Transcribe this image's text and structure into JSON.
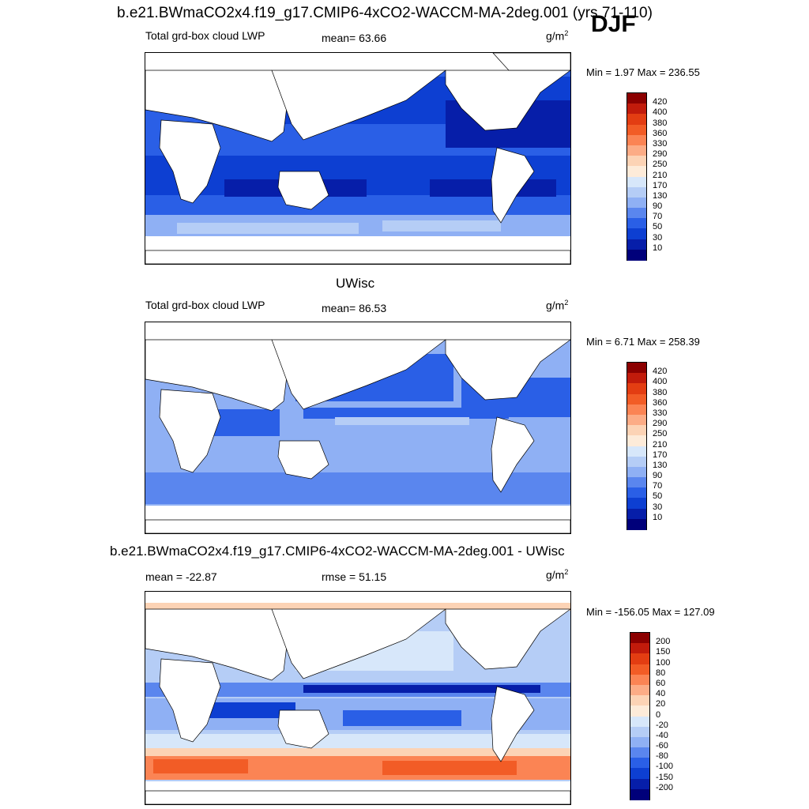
{
  "header": {
    "case_title": "b.e21.BWmaCO2x4.f19_g17.CMIP6-4xCO2-WACCM-MA-2deg.001 (yrs 71-110)",
    "season": "DJF"
  },
  "panels": [
    {
      "id": "test",
      "variable_label": "Total grd-box cloud LWP",
      "stat_label": "mean=  63.66",
      "units": "g/m",
      "units_exp": "2",
      "minmax": "Min =   1.97 Max = 236.55",
      "colorbar_levels": [
        "420",
        "400",
        "380",
        "360",
        "330",
        "290",
        "250",
        "210",
        "170",
        "130",
        "90",
        "70",
        "50",
        "30",
        "10"
      ]
    },
    {
      "id": "control",
      "title": "UWisc",
      "variable_label": "Total grd-box cloud LWP",
      "stat_label": "mean=  86.53",
      "units": "g/m",
      "units_exp": "2",
      "minmax": "Min =   6.71 Max = 258.39",
      "colorbar_levels": [
        "420",
        "400",
        "380",
        "360",
        "330",
        "290",
        "250",
        "210",
        "170",
        "130",
        "90",
        "70",
        "50",
        "30",
        "10"
      ]
    },
    {
      "id": "diff",
      "title": "b.e21.BWmaCO2x4.f19_g17.CMIP6-4xCO2-WACCM-MA-2deg.001 - UWisc",
      "variable_label": "mean = -22.87",
      "stat_label": "rmse =  51.15",
      "units": "g/m",
      "units_exp": "2",
      "minmax": "Min = -156.05 Max = 127.09",
      "colorbar_levels": [
        "200",
        "150",
        "100",
        "80",
        "60",
        "40",
        "20",
        "0",
        "-20",
        "-40",
        "-60",
        "-80",
        "-100",
        "-150",
        "-200"
      ]
    }
  ],
  "colors": {
    "abs_scale": [
      "#8b0000",
      "#c11b0b",
      "#e33d12",
      "#f25c26",
      "#fb8454",
      "#fcac86",
      "#fcd3b5",
      "#fdebd9",
      "#d7e7fa",
      "#b5cdf6",
      "#8fb0f4",
      "#5a86ee",
      "#2a5fe6",
      "#0d3fd2",
      "#061ea9",
      "#00007a"
    ],
    "diff_scale": [
      "#8b0000",
      "#c11b0b",
      "#e33d12",
      "#f25c26",
      "#fb8454",
      "#fcac86",
      "#fcd3b5",
      "#fdebd9",
      "#d7e7fa",
      "#b5cdf6",
      "#8fb0f4",
      "#5a86ee",
      "#2a5fe6",
      "#0d3fd2",
      "#061ea9",
      "#00007a"
    ]
  }
}
